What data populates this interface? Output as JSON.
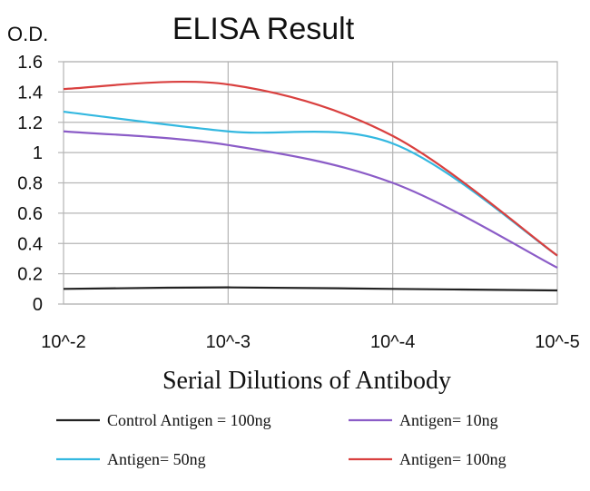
{
  "chart_data": {
    "type": "line",
    "title": "ELISA Result",
    "ylabel": "O.D.",
    "xlabel": "Serial Dilutions of Antibody",
    "categories": [
      "10^-2",
      "10^-3",
      "10^-4",
      "10^-5"
    ],
    "ylim": [
      0,
      1.6
    ],
    "yticks": [
      "0",
      "0.2",
      "0.4",
      "0.6",
      "0.8",
      "1",
      "1.2",
      "1.4",
      "1.6"
    ],
    "grid": true,
    "legend_position": "bottom",
    "series": [
      {
        "name": "Control Antigen = 100ng",
        "color": "#222222",
        "values": [
          0.1,
          0.11,
          0.1,
          0.09
        ]
      },
      {
        "name": "Antigen= 10ng",
        "color": "#8b5cc7",
        "values": [
          1.14,
          1.05,
          0.8,
          0.24
        ]
      },
      {
        "name": "Antigen= 50ng",
        "color": "#33b8e0",
        "values": [
          1.27,
          1.14,
          1.06,
          0.32
        ]
      },
      {
        "name": "Antigen= 100ng",
        "color": "#d9403f",
        "values": [
          1.42,
          1.45,
          1.11,
          0.32
        ]
      }
    ]
  }
}
